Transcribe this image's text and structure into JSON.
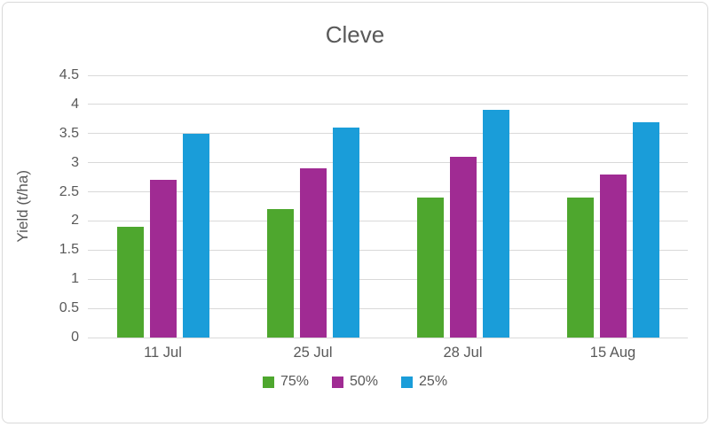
{
  "chart_data": {
    "type": "bar",
    "title": "Cleve",
    "xlabel": "",
    "ylabel": "Yield (t/ha)",
    "categories": [
      "11 Jul",
      "25 Jul",
      "28 Jul",
      "15 Aug"
    ],
    "series": [
      {
        "name": "75%",
        "color": "#4EA72E",
        "values": [
          1.9,
          2.2,
          2.4,
          2.4
        ]
      },
      {
        "name": "50%",
        "color": "#A02B93",
        "values": [
          2.7,
          2.9,
          3.1,
          2.8
        ]
      },
      {
        "name": "25%",
        "color": "#1A9DD9",
        "values": [
          3.5,
          3.6,
          3.9,
          3.7
        ]
      }
    ],
    "ylim": [
      0,
      4.5
    ],
    "ytick_step": 0.5,
    "grid": true,
    "legend_position": "bottom"
  },
  "colors": {
    "text": "#595959",
    "gridline": "#D9D9D9",
    "border": "#D9D9D9",
    "background": "#FFFFFF"
  }
}
